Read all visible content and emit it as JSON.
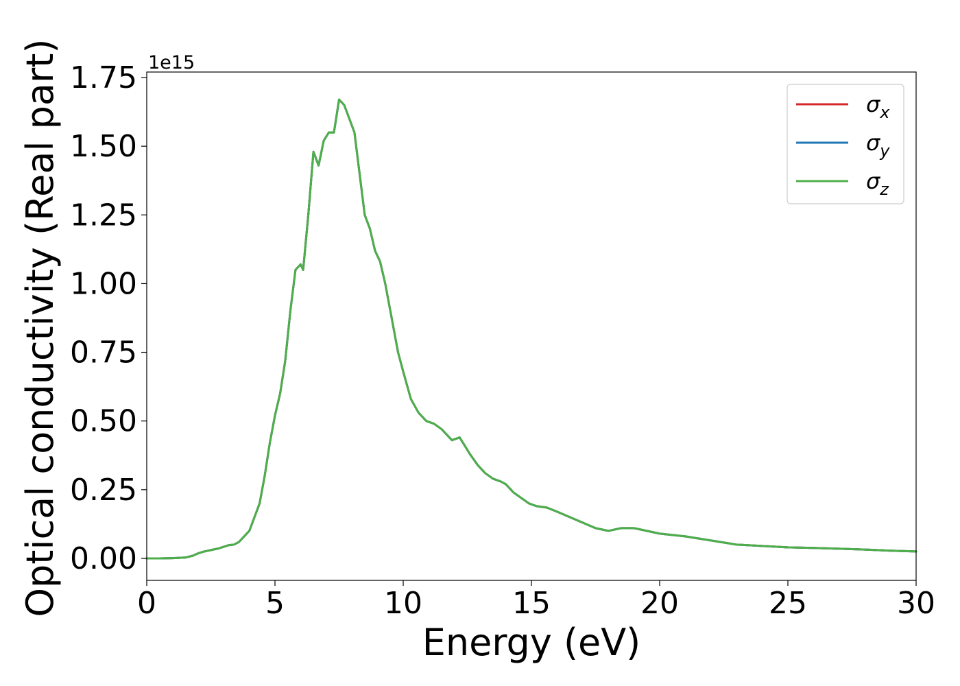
{
  "chart_data": {
    "type": "line",
    "title": "",
    "xlabel": "Energy (eV)",
    "ylabel": "Optical conductivity (Real part)",
    "y_offset_label": "1e15",
    "y_scale_factor": 1000000000000000.0,
    "xlim": [
      0,
      30
    ],
    "ylim": [
      -0.08,
      1.77
    ],
    "x_ticks": [
      0,
      5,
      10,
      15,
      20,
      25,
      30
    ],
    "x_tick_labels": [
      "0",
      "5",
      "10",
      "15",
      "20",
      "25",
      "30"
    ],
    "y_ticks": [
      0,
      0.25,
      0.5,
      0.75,
      1.0,
      1.25,
      1.5,
      1.75
    ],
    "y_tick_labels": [
      "0.00",
      "0.25",
      "0.50",
      "0.75",
      "1.00",
      "1.25",
      "1.50",
      "1.75"
    ],
    "grid": false,
    "legend_position": "top-right",
    "legend": [
      {
        "symbol": "σ",
        "subscript": "x",
        "color": "#d62728"
      },
      {
        "symbol": "σ",
        "subscript": "y",
        "color": "#1f77b4"
      },
      {
        "symbol": "σ",
        "subscript": "z",
        "color": "#4daf4a"
      }
    ],
    "x": [
      0,
      0.5,
      1.0,
      1.5,
      1.8,
      2.0,
      2.2,
      2.5,
      2.8,
      3.0,
      3.2,
      3.4,
      3.6,
      3.8,
      4.0,
      4.2,
      4.4,
      4.6,
      4.8,
      5.0,
      5.2,
      5.4,
      5.6,
      5.8,
      6.0,
      6.1,
      6.3,
      6.5,
      6.7,
      6.9,
      7.1,
      7.3,
      7.5,
      7.7,
      7.9,
      8.1,
      8.3,
      8.5,
      8.7,
      8.9,
      9.1,
      9.3,
      9.5,
      9.8,
      10.0,
      10.3,
      10.6,
      10.9,
      11.2,
      11.5,
      11.7,
      11.9,
      12.2,
      12.4,
      12.6,
      12.9,
      13.2,
      13.5,
      13.8,
      14.0,
      14.3,
      14.6,
      14.9,
      15.2,
      15.6,
      16.0,
      16.5,
      17.0,
      17.5,
      18.0,
      18.5,
      19.0,
      19.5,
      20.0,
      20.5,
      21.0,
      22.0,
      23.0,
      24.0,
      25.0,
      26.0,
      27.0,
      28.0,
      29.0,
      30.0
    ],
    "series": [
      {
        "name": "σ_x",
        "color": "#d62728",
        "values": [
          0.0,
          0.0,
          0.001,
          0.003,
          0.01,
          0.018,
          0.024,
          0.03,
          0.036,
          0.042,
          0.048,
          0.05,
          0.06,
          0.08,
          0.1,
          0.15,
          0.2,
          0.3,
          0.42,
          0.52,
          0.6,
          0.72,
          0.9,
          1.05,
          1.07,
          1.05,
          1.25,
          1.48,
          1.43,
          1.52,
          1.55,
          1.55,
          1.67,
          1.65,
          1.6,
          1.55,
          1.4,
          1.25,
          1.2,
          1.12,
          1.08,
          1.0,
          0.9,
          0.75,
          0.68,
          0.58,
          0.53,
          0.5,
          0.49,
          0.47,
          0.45,
          0.43,
          0.44,
          0.41,
          0.38,
          0.34,
          0.31,
          0.29,
          0.28,
          0.27,
          0.24,
          0.22,
          0.2,
          0.19,
          0.185,
          0.17,
          0.15,
          0.13,
          0.11,
          0.1,
          0.11,
          0.11,
          0.1,
          0.09,
          0.085,
          0.08,
          0.065,
          0.05,
          0.045,
          0.04,
          0.038,
          0.035,
          0.032,
          0.028,
          0.025
        ]
      },
      {
        "name": "σ_y",
        "color": "#1f77b4",
        "values": [
          0.0,
          0.0,
          0.001,
          0.003,
          0.01,
          0.018,
          0.024,
          0.03,
          0.036,
          0.042,
          0.048,
          0.05,
          0.06,
          0.08,
          0.1,
          0.15,
          0.2,
          0.3,
          0.42,
          0.52,
          0.6,
          0.72,
          0.9,
          1.05,
          1.07,
          1.05,
          1.25,
          1.48,
          1.43,
          1.52,
          1.55,
          1.55,
          1.67,
          1.65,
          1.6,
          1.55,
          1.4,
          1.25,
          1.2,
          1.12,
          1.08,
          1.0,
          0.9,
          0.75,
          0.68,
          0.58,
          0.53,
          0.5,
          0.49,
          0.47,
          0.45,
          0.43,
          0.44,
          0.41,
          0.38,
          0.34,
          0.31,
          0.29,
          0.28,
          0.27,
          0.24,
          0.22,
          0.2,
          0.19,
          0.185,
          0.17,
          0.15,
          0.13,
          0.11,
          0.1,
          0.11,
          0.11,
          0.1,
          0.09,
          0.085,
          0.08,
          0.065,
          0.05,
          0.045,
          0.04,
          0.038,
          0.035,
          0.032,
          0.028,
          0.025
        ]
      },
      {
        "name": "σ_z",
        "color": "#4daf4a",
        "values": [
          0.0,
          0.0,
          0.001,
          0.003,
          0.01,
          0.018,
          0.024,
          0.03,
          0.036,
          0.042,
          0.048,
          0.05,
          0.06,
          0.08,
          0.1,
          0.15,
          0.2,
          0.3,
          0.42,
          0.52,
          0.6,
          0.72,
          0.9,
          1.05,
          1.07,
          1.05,
          1.25,
          1.48,
          1.43,
          1.52,
          1.55,
          1.55,
          1.67,
          1.65,
          1.6,
          1.55,
          1.4,
          1.25,
          1.2,
          1.12,
          1.08,
          1.0,
          0.9,
          0.75,
          0.68,
          0.58,
          0.53,
          0.5,
          0.49,
          0.47,
          0.45,
          0.43,
          0.44,
          0.41,
          0.38,
          0.34,
          0.31,
          0.29,
          0.28,
          0.27,
          0.24,
          0.22,
          0.2,
          0.19,
          0.185,
          0.17,
          0.15,
          0.13,
          0.11,
          0.1,
          0.11,
          0.11,
          0.1,
          0.09,
          0.085,
          0.08,
          0.065,
          0.05,
          0.045,
          0.04,
          0.038,
          0.035,
          0.032,
          0.028,
          0.025
        ]
      }
    ]
  }
}
